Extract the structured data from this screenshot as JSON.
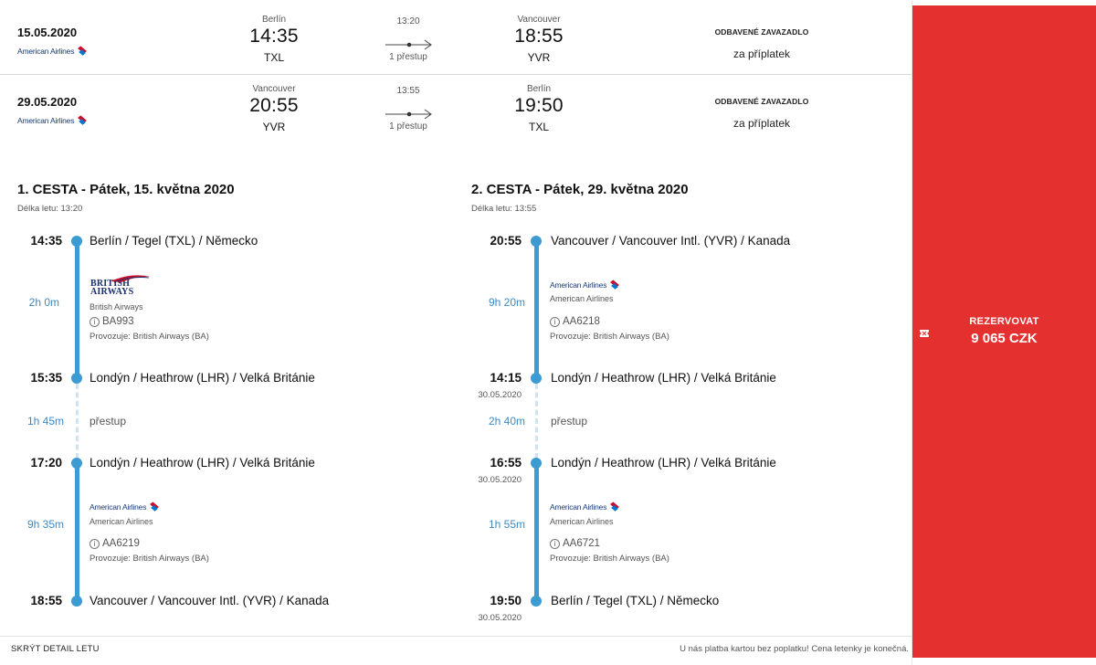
{
  "summary": [
    {
      "date": "15.05.2020",
      "airline_logo": "American Airlines",
      "dep_city": "Berlín",
      "dep_time": "14:35",
      "dep_code": "TXL",
      "duration": "13:20",
      "stops": "1 přestup",
      "arr_city": "Vancouver",
      "arr_time": "18:55",
      "arr_code": "YVR",
      "baggage_title": "ODBAVENÉ ZAVAZADLO",
      "baggage_value": "za příplatek"
    },
    {
      "date": "29.05.2020",
      "airline_logo": "American Airlines",
      "dep_city": "Vancouver",
      "dep_time": "20:55",
      "dep_code": "YVR",
      "duration": "13:55",
      "stops": "1 přestup",
      "arr_city": "Berlín",
      "arr_time": "19:50",
      "arr_code": "TXL",
      "baggage_title": "ODBAVENÉ ZAVAZADLO",
      "baggage_value": "za příplatek"
    }
  ],
  "legs": [
    {
      "title": "1. CESTA - Pátek, 15. května 2020",
      "length": "Délka letu: 13:20",
      "stops": [
        {
          "time": "14:35",
          "subdate": "",
          "place": "Berlín / Tegel (TXL) / Německo"
        },
        {
          "time": "15:35",
          "subdate": "",
          "place": "Londýn / Heathrow (LHR) / Velká Británie"
        },
        {
          "time": "17:20",
          "subdate": "",
          "place": "Londýn / Heathrow (LHR) / Velká Británie"
        },
        {
          "time": "18:55",
          "subdate": "",
          "place": "Vancouver / Vancouver Intl. (YVR) / Kanada"
        }
      ],
      "segments": [
        {
          "duration": "2h 0m",
          "logo": "BRITISH AIRWAYS",
          "airline": "British Airways",
          "flight": "BA993",
          "operator": "Provozuje: British Airways (BA)"
        },
        {
          "duration": "9h 35m",
          "logo": "American Airlines",
          "airline": "American Airlines",
          "flight": "AA6219",
          "operator": "Provozuje: British Airways (BA)"
        }
      ],
      "transfer": {
        "duration": "1h 45m",
        "label": "přestup"
      }
    },
    {
      "title": "2. CESTA - Pátek, 29. května 2020",
      "length": "Délka letu: 13:55",
      "stops": [
        {
          "time": "20:55",
          "subdate": "",
          "place": "Vancouver / Vancouver Intl. (YVR) / Kanada"
        },
        {
          "time": "14:15",
          "subdate": "30.05.2020",
          "place": "Londýn / Heathrow (LHR) / Velká Británie"
        },
        {
          "time": "16:55",
          "subdate": "30.05.2020",
          "place": "Londýn / Heathrow (LHR) / Velká Británie"
        },
        {
          "time": "19:50",
          "subdate": "30.05.2020",
          "place": "Berlín / Tegel (TXL) / Německo"
        }
      ],
      "segments": [
        {
          "duration": "9h 20m",
          "logo": "American Airlines",
          "airline": "American Airlines",
          "flight": "AA6218",
          "operator": "Provozuje: British Airways (BA)"
        },
        {
          "duration": "1h 55m",
          "logo": "American Airlines",
          "airline": "American Airlines",
          "flight": "AA6721",
          "operator": "Provozuje: British Airways (BA)"
        }
      ],
      "transfer": {
        "duration": "2h 40m",
        "label": "přestup"
      }
    }
  ],
  "footer": {
    "hide_detail": "SKRÝT DETAIL LETU",
    "note": "U nás platba kartou bez poplatku! Cena letenky je konečná."
  },
  "book": {
    "label": "REZERVOVAT",
    "price": "9 065 CZK",
    "icon": "ticket-icon",
    "color": "#e53030"
  },
  "colors": {
    "accent": "#3d9bd3",
    "book": "#e53030"
  }
}
